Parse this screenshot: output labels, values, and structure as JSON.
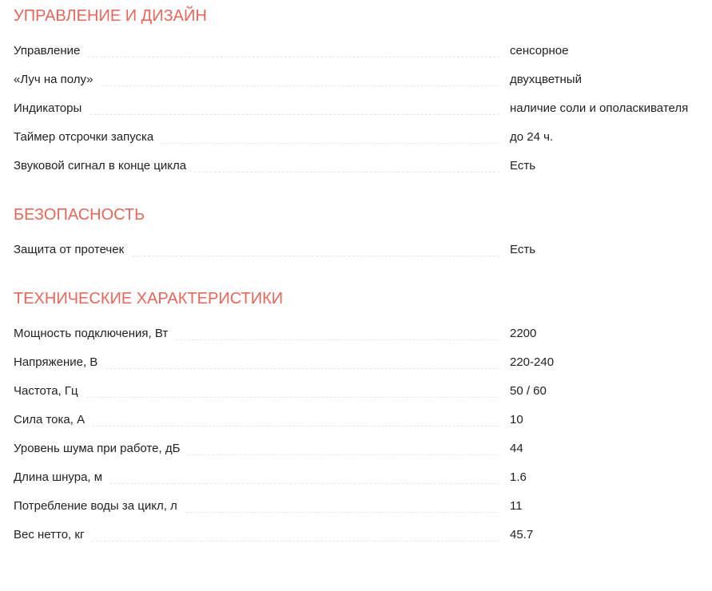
{
  "sections": [
    {
      "title": "УПРАВЛЕНИЕ И ДИЗАЙН",
      "rows": [
        {
          "label": "Управление",
          "value": "сенсорное"
        },
        {
          "label": "«Луч на полу»",
          "value": "двухцветный"
        },
        {
          "label": "Индикаторы",
          "value": "наличие соли и ополаскивателя"
        },
        {
          "label": "Таймер отсрочки запуска",
          "value": "до 24 ч."
        },
        {
          "label": "Звуковой сигнал в конце цикла",
          "value": "Есть"
        }
      ]
    },
    {
      "title": "БЕЗОПАСНОСТЬ",
      "rows": [
        {
          "label": "Защита от протечек",
          "value": "Есть"
        }
      ]
    },
    {
      "title": "ТЕХНИЧЕСКИЕ ХАРАКТЕРИСТИКИ",
      "rows": [
        {
          "label": "Мощность подключения, Вт",
          "value": "2200"
        },
        {
          "label": "Напряжение, В",
          "value": "220-240"
        },
        {
          "label": "Частота, Гц",
          "value": "50 / 60"
        },
        {
          "label": "Сила тока, А",
          "value": "10"
        },
        {
          "label": "Уровень шума при работе, дБ",
          "value": "44"
        },
        {
          "label": "Длина шнура, м",
          "value": "1.6"
        },
        {
          "label": "Потребление воды за цикл, л",
          "value": "11"
        },
        {
          "label": "Вес нетто, кг",
          "value": "45.7"
        }
      ]
    }
  ],
  "colors": {
    "heading": "#e8675a",
    "text": "#222222",
    "dots": "#e6e6e6"
  }
}
